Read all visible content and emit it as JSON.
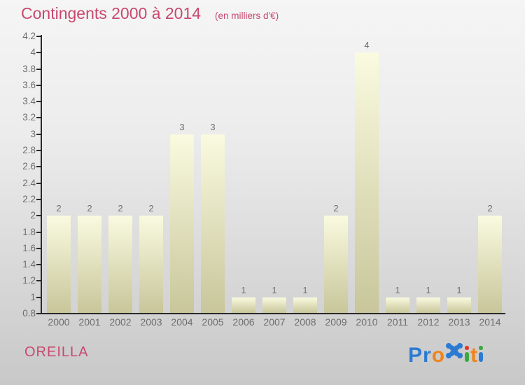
{
  "header": {
    "title": "Contingents 2000 à 2014",
    "subtitle": "(en milliers d'€)"
  },
  "chart_data": {
    "type": "bar",
    "title": "Contingents 2000 à 2014",
    "subtitle": "(en milliers d'€)",
    "categories": [
      "2000",
      "2001",
      "2002",
      "2003",
      "2004",
      "2005",
      "2006",
      "2007",
      "2008",
      "2009",
      "2010",
      "2011",
      "2012",
      "2013",
      "2014"
    ],
    "values": [
      2,
      2,
      2,
      2,
      3,
      3,
      1,
      1,
      1,
      2,
      4,
      1,
      1,
      1,
      2
    ],
    "value_labels": [
      "2",
      "2",
      "2",
      "2",
      "3",
      "3",
      "1",
      "1",
      "1",
      "2",
      "4",
      "1",
      "1",
      "1",
      "2"
    ],
    "xlabel": "",
    "ylabel": "",
    "ylim": [
      0.8,
      4.2
    ],
    "ytick_step": 0.2,
    "grid": false,
    "legend": false
  },
  "footer": {
    "location": "OREILLA",
    "logo_name": "Proxiti"
  },
  "logo": {
    "letters": [
      {
        "type": "text",
        "glyph": "P",
        "color": "#2b7bd2"
      },
      {
        "type": "text",
        "glyph": "r",
        "color": "#2b7bd2"
      },
      {
        "type": "text",
        "glyph": "o",
        "color": "#f0841c"
      },
      {
        "type": "x-icon",
        "glyph": "x",
        "color": "#2b7bd2"
      },
      {
        "type": "dotted-i",
        "glyph": "i",
        "dot_color": "#e0392b",
        "stem_color": "#3aa93f"
      },
      {
        "type": "text",
        "glyph": "t",
        "color": "#f0841c"
      },
      {
        "type": "dotted-i",
        "glyph": "i",
        "dot_color": "#3aa93f",
        "stem_color": "#2b7bd2"
      }
    ]
  },
  "colors": {
    "background_top": "#f5f5f5",
    "background_bottom": "#c8c8c8",
    "title_pink": "#c8486f",
    "axis": "#2a2a2a",
    "label_gray": "#6e6e6e",
    "bar_top": "#fafae0",
    "bar_bottom": "#c8c69a"
  }
}
